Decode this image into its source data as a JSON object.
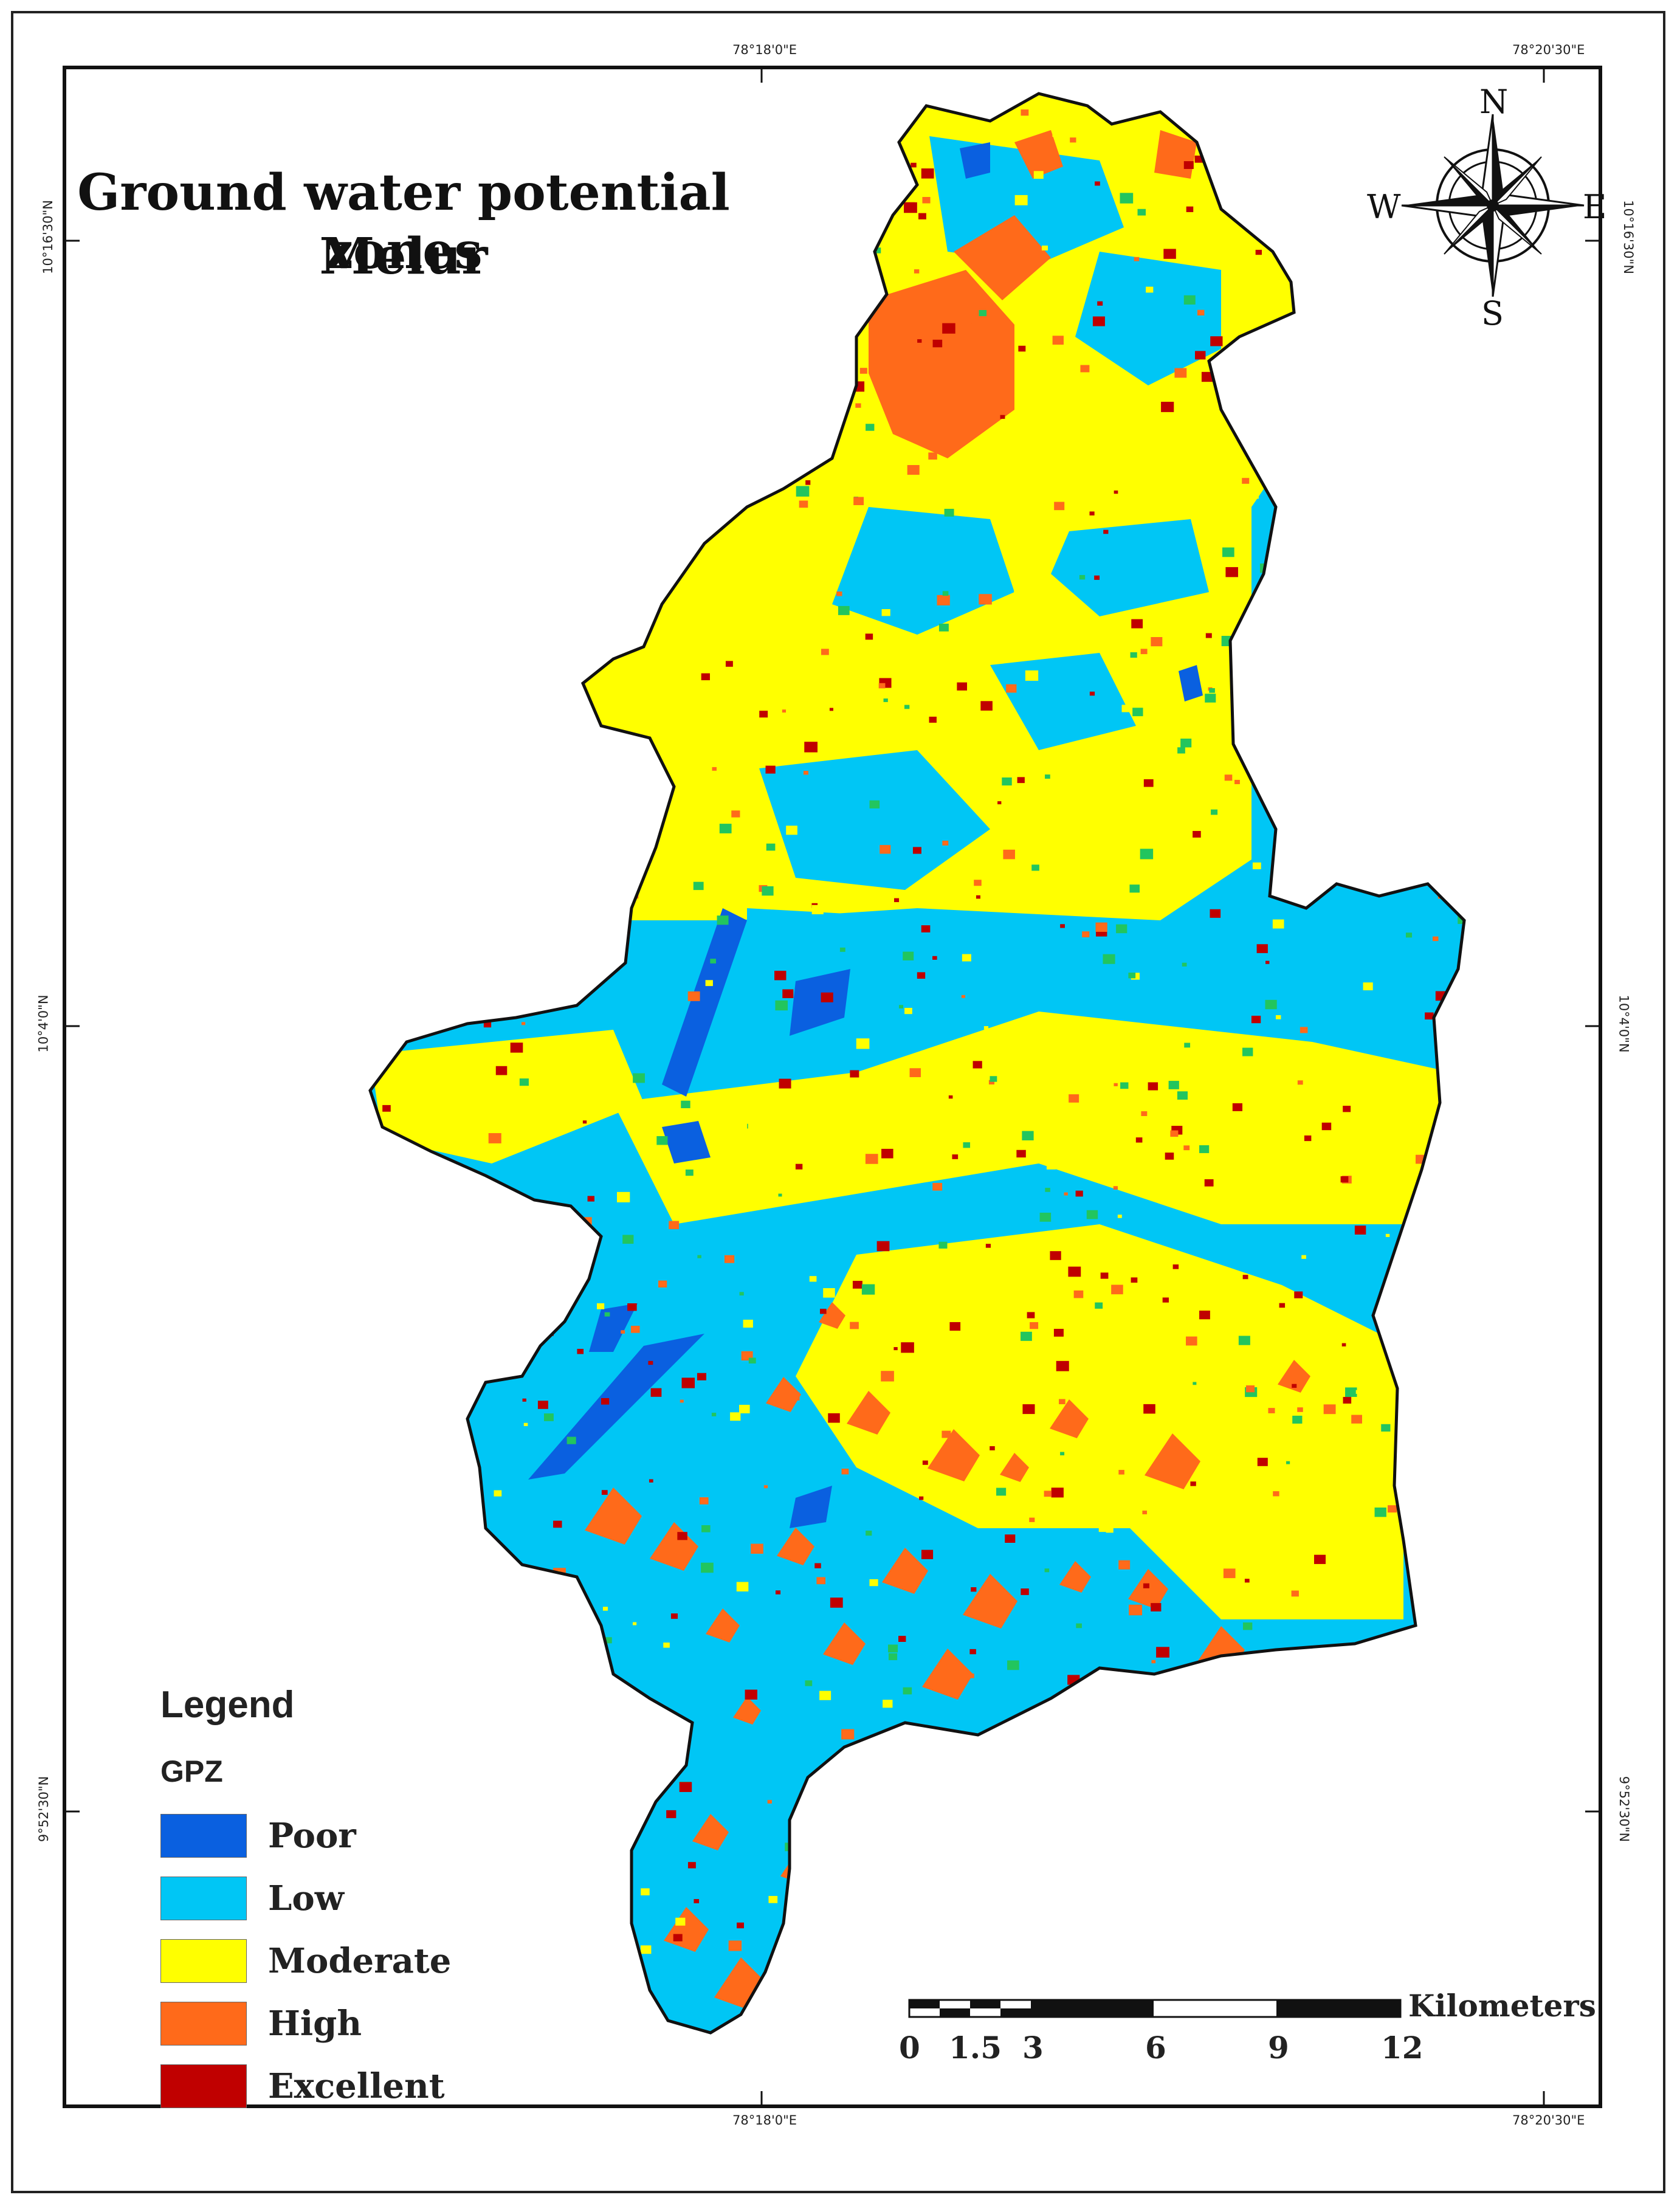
{
  "title": {
    "line1": "Ground water potential zones",
    "line2": "Melur"
  },
  "north_arrow": {
    "n": "N",
    "s": "S",
    "e": "E",
    "w": "W"
  },
  "coordinates": {
    "top": [
      "78°18'0\"E",
      "78°20'30\"E"
    ],
    "bottom": [
      "78°18'0\"E",
      "78°20'30\"E"
    ],
    "left": [
      "10°16'30\"N",
      "10°4'0\"N",
      "9°52'30\"N"
    ],
    "right": [
      "10°16'30\"N",
      "10°4'0\"N",
      "9°52'30\"N"
    ]
  },
  "legend": {
    "title": "Legend",
    "subtitle": "GPZ",
    "items": [
      {
        "label": "Poor",
        "color": "#0a60e0"
      },
      {
        "label": "Low",
        "color": "#00c6f5"
      },
      {
        "label": "Moderate",
        "color": "#ffff00"
      },
      {
        "label": "High",
        "color": "#ff6a1a"
      },
      {
        "label": "Excellent",
        "color": "#c00000"
      }
    ]
  },
  "scale_bar": {
    "unit": "Kilometers",
    "ticks": [
      "0",
      "1.5",
      "3",
      "6",
      "9",
      "12"
    ]
  }
}
